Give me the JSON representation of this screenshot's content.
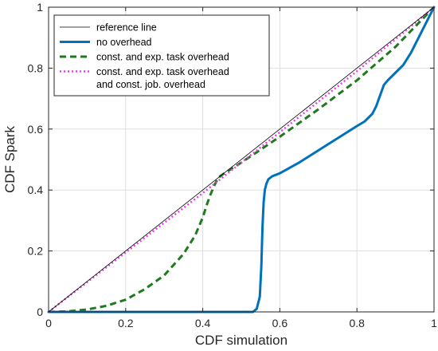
{
  "chart_data": {
    "type": "line",
    "title": "",
    "xlabel": "CDF simulation",
    "ylabel": "CDF Spark",
    "xlim": [
      0,
      1
    ],
    "ylim": [
      0,
      1
    ],
    "xticks": [
      0,
      0.2,
      0.4,
      0.6,
      0.8,
      1
    ],
    "yticks": [
      0,
      0.2,
      0.4,
      0.6,
      0.8,
      1
    ],
    "xtick_labels": [
      "0",
      "0.2",
      "0.4",
      "0.6",
      "0.8",
      "1"
    ],
    "ytick_labels": [
      "0",
      "0.2",
      "0.4",
      "0.6",
      "0.8",
      "1"
    ],
    "grid": true,
    "legend_position": "top-left",
    "series": [
      {
        "name": "reference line",
        "color": "#000000",
        "style": "solid-thin",
        "x": [
          0,
          1
        ],
        "y": [
          0,
          1
        ]
      },
      {
        "name": "no overhead",
        "color": "#0072BD",
        "style": "solid-thick",
        "x": [
          0,
          0.2,
          0.4,
          0.53,
          0.54,
          0.548,
          0.552,
          0.555,
          0.558,
          0.561,
          0.565,
          0.57,
          0.58,
          0.6,
          0.65,
          0.7,
          0.75,
          0.8,
          0.82,
          0.84,
          0.85,
          0.86,
          0.87,
          0.88,
          0.9,
          0.92,
          0.94,
          0.96,
          0.98,
          1.0
        ],
        "y": [
          0,
          0,
          0,
          0,
          0.01,
          0.05,
          0.15,
          0.28,
          0.36,
          0.4,
          0.42,
          0.435,
          0.445,
          0.455,
          0.49,
          0.53,
          0.57,
          0.61,
          0.625,
          0.65,
          0.675,
          0.71,
          0.745,
          0.76,
          0.785,
          0.81,
          0.85,
          0.9,
          0.95,
          1.0
        ]
      },
      {
        "name": "const. and exp. task overhead",
        "color": "#1E7A1E",
        "style": "dashed-thick",
        "x": [
          0,
          0.05,
          0.1,
          0.15,
          0.2,
          0.25,
          0.3,
          0.35,
          0.38,
          0.4,
          0.41,
          0.42,
          0.43,
          0.44,
          0.45,
          0.5,
          0.6,
          0.7,
          0.8,
          0.9,
          1.0
        ],
        "y": [
          0,
          0.002,
          0.008,
          0.02,
          0.04,
          0.075,
          0.12,
          0.19,
          0.25,
          0.31,
          0.35,
          0.385,
          0.415,
          0.44,
          0.45,
          0.49,
          0.575,
          0.665,
          0.76,
          0.87,
          1.0
        ]
      },
      {
        "name": "const. and exp. task overhead\nand const. job. overhead",
        "color": "#E642E6",
        "style": "dotted-thick",
        "x": [
          0,
          0.2,
          0.4,
          0.5,
          0.6,
          0.7,
          0.8,
          0.9,
          1.0
        ],
        "y": [
          0,
          0.195,
          0.39,
          0.49,
          0.59,
          0.69,
          0.79,
          0.895,
          1.0
        ]
      }
    ]
  }
}
